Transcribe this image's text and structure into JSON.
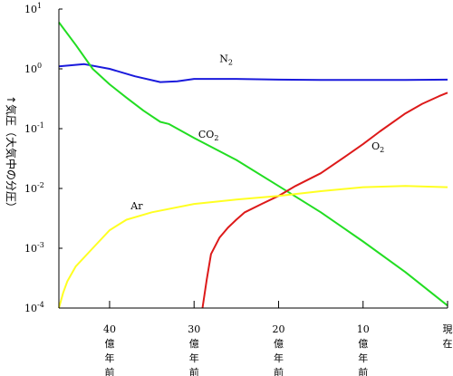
{
  "chart_data": {
    "type": "line",
    "ylabel": "↑気圧（大気中の分圧）",
    "yscale": "log",
    "ylim": [
      0.0001,
      10
    ],
    "xlim": [
      46,
      0
    ],
    "y_ticks": [
      {
        "value": 10,
        "base": "10",
        "exp": "1"
      },
      {
        "value": 1,
        "base": "10",
        "exp": "0"
      },
      {
        "value": 0.1,
        "base": "10",
        "exp": "-1"
      },
      {
        "value": 0.01,
        "base": "10",
        "exp": "-2"
      },
      {
        "value": 0.001,
        "base": "10",
        "exp": "-3"
      },
      {
        "value": 0.0001,
        "base": "10",
        "exp": "-4"
      }
    ],
    "x_ticks": [
      {
        "value": 40,
        "lines": [
          "40",
          "億",
          "年",
          "前"
        ]
      },
      {
        "value": 30,
        "lines": [
          "30",
          "億",
          "年",
          "前"
        ]
      },
      {
        "value": 20,
        "lines": [
          "20",
          "億",
          "年",
          "前"
        ]
      },
      {
        "value": 10,
        "lines": [
          "10",
          "億",
          "年",
          "前"
        ]
      },
      {
        "value": 0,
        "lines": [
          "現",
          "在"
        ]
      }
    ],
    "series": [
      {
        "name": "N2",
        "label_main": "N",
        "label_sub": "2",
        "label_at": [
          27,
          1.3
        ],
        "color": "#1a1adc",
        "points": [
          [
            46,
            1.1
          ],
          [
            43,
            1.2
          ],
          [
            40,
            1.0
          ],
          [
            37,
            0.75
          ],
          [
            34,
            0.6
          ],
          [
            32,
            0.62
          ],
          [
            30,
            0.68
          ],
          [
            25,
            0.68
          ],
          [
            20,
            0.66
          ],
          [
            15,
            0.65
          ],
          [
            10,
            0.65
          ],
          [
            5,
            0.65
          ],
          [
            0,
            0.66
          ]
        ]
      },
      {
        "name": "CO2",
        "label_main": "CO",
        "label_sub": "2",
        "label_at": [
          29.5,
          0.07
        ],
        "color": "#22dd22",
        "points": [
          [
            46,
            6.0
          ],
          [
            44,
            2.5
          ],
          [
            42,
            1.0
          ],
          [
            40,
            0.55
          ],
          [
            38,
            0.33
          ],
          [
            36,
            0.2
          ],
          [
            34,
            0.13
          ],
          [
            33,
            0.12
          ],
          [
            30,
            0.07
          ],
          [
            25,
            0.03
          ],
          [
            20,
            0.011
          ],
          [
            15,
            0.004
          ],
          [
            10,
            0.0013
          ],
          [
            5,
            0.0004
          ],
          [
            0,
            0.00011
          ]
        ]
      },
      {
        "name": "O2",
        "label_main": "O",
        "label_sub": "2",
        "label_at": [
          9,
          0.045
        ],
        "color": "#dd1a1a",
        "points": [
          [
            29,
            0.0001
          ],
          [
            28.5,
            0.0003
          ],
          [
            28,
            0.0008
          ],
          [
            27,
            0.0015
          ],
          [
            26,
            0.0022
          ],
          [
            25,
            0.003
          ],
          [
            24,
            0.004
          ],
          [
            22,
            0.0055
          ],
          [
            20,
            0.0075
          ],
          [
            18,
            0.011
          ],
          [
            15,
            0.018
          ],
          [
            12,
            0.035
          ],
          [
            10,
            0.055
          ],
          [
            8,
            0.09
          ],
          [
            5,
            0.18
          ],
          [
            3,
            0.26
          ],
          [
            1,
            0.35
          ],
          [
            0,
            0.4
          ]
        ]
      },
      {
        "name": "Ar",
        "label_main": "Ar",
        "label_sub": "",
        "label_at": [
          37.5,
          0.0045
        ],
        "color": "#ffff22",
        "points": [
          [
            46,
            0.0001
          ],
          [
            45.5,
            0.00018
          ],
          [
            45,
            0.00028
          ],
          [
            44,
            0.0005
          ],
          [
            42,
            0.001
          ],
          [
            40,
            0.002
          ],
          [
            38,
            0.003
          ],
          [
            35,
            0.004
          ],
          [
            30,
            0.0055
          ],
          [
            25,
            0.0065
          ],
          [
            20,
            0.0075
          ],
          [
            15,
            0.009
          ],
          [
            10,
            0.0105
          ],
          [
            5,
            0.011
          ],
          [
            0,
            0.0105
          ]
        ]
      }
    ],
    "grid": false,
    "legend": "none"
  }
}
